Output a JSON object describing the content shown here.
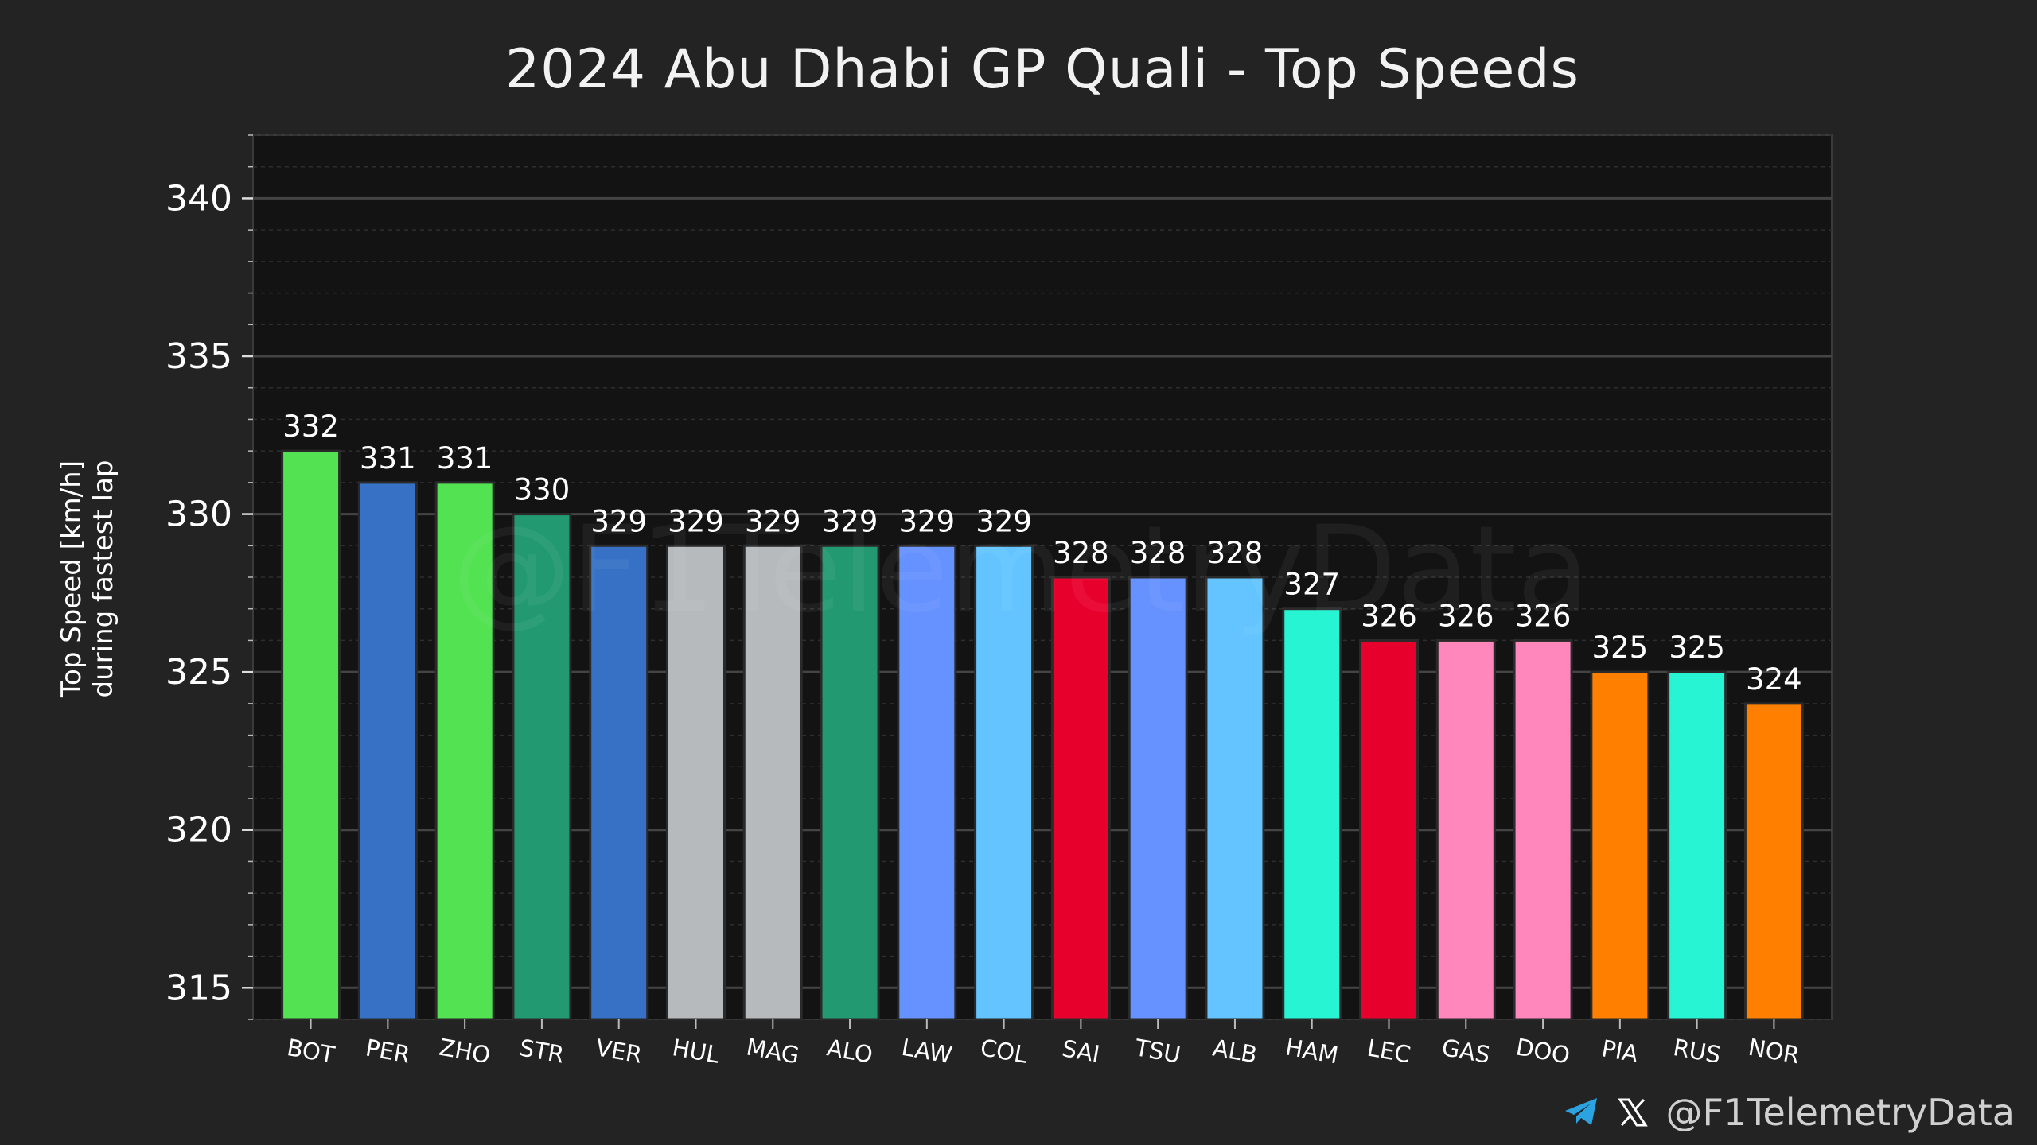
{
  "chart_data": {
    "type": "bar",
    "title": "2024 Abu Dhabi GP Quali - Top Speeds",
    "xlabel": "",
    "ylabel": [
      "Top Speed [km/h]",
      "during fastest lap"
    ],
    "ylim": [
      314,
      342
    ],
    "yticks": [
      315,
      320,
      325,
      330,
      335,
      340
    ],
    "categories": [
      "BOT",
      "PER",
      "ZHO",
      "STR",
      "VER",
      "HUL",
      "MAG",
      "ALO",
      "LAW",
      "COL",
      "SAI",
      "TSU",
      "ALB",
      "HAM",
      "LEC",
      "GAS",
      "DOO",
      "PIA",
      "RUS",
      "NOR"
    ],
    "values": [
      332,
      331,
      331,
      330,
      329,
      329,
      329,
      329,
      329,
      329,
      328,
      328,
      328,
      327,
      326,
      326,
      326,
      325,
      325,
      324
    ],
    "colors": [
      "#52e252",
      "#3671c6",
      "#52e252",
      "#229971",
      "#3671c6",
      "#b6babd",
      "#b6babd",
      "#229971",
      "#6692ff",
      "#64c4ff",
      "#e8002d",
      "#6692ff",
      "#64c4ff",
      "#27f4d2",
      "#e8002d",
      "#ff87bc",
      "#ff87bc",
      "#ff8000",
      "#27f4d2",
      "#ff8000"
    ],
    "grid": true
  },
  "watermark": "@F1TelemetryData",
  "footer": {
    "handle": "@F1TelemetryData",
    "icons": [
      "telegram-icon",
      "x-icon"
    ]
  }
}
